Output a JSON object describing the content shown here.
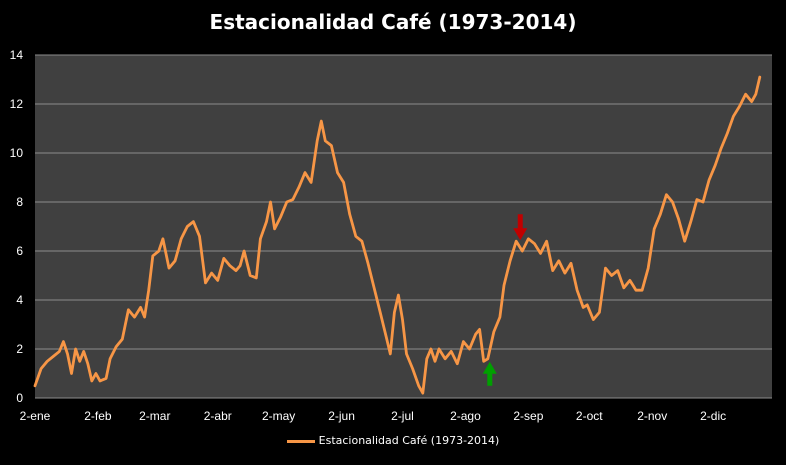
{
  "chart_data": {
    "type": "line",
    "title": "Estacionalidad Café  (1973-2014)",
    "xlabel": "",
    "ylabel": "",
    "ylim": [
      0,
      14
    ],
    "yticks": [
      0,
      2,
      4,
      6,
      8,
      10,
      12,
      14
    ],
    "xlim": [
      "2-ene",
      "31-dic"
    ],
    "x_tick_labels": [
      "2-ene",
      "2-feb",
      "2-mar",
      "2-abr",
      "2-may",
      "2-jun",
      "2-jul",
      "2-ago",
      "2-sep",
      "2-oct",
      "2-nov",
      "2-dic"
    ],
    "grid": true,
    "legend_position": "bottom",
    "background": "#404040",
    "series": [
      {
        "name": "Estacionalidad Café (1973-2014)",
        "color": "#F79646",
        "points": [
          [
            "2-ene",
            0.5
          ],
          [
            "5-ene",
            1.2
          ],
          [
            "8-ene",
            1.5
          ],
          [
            "11-ene",
            1.7
          ],
          [
            "14-ene",
            1.9
          ],
          [
            "16-ene",
            2.3
          ],
          [
            "18-ene",
            1.8
          ],
          [
            "20-ene",
            1.0
          ],
          [
            "22-ene",
            2.0
          ],
          [
            "24-ene",
            1.5
          ],
          [
            "26-ene",
            1.9
          ],
          [
            "28-ene",
            1.4
          ],
          [
            "30-ene",
            0.7
          ],
          [
            "1-feb",
            1.0
          ],
          [
            "3-feb",
            0.7
          ],
          [
            "6-feb",
            0.8
          ],
          [
            "8-feb",
            1.6
          ],
          [
            "11-feb",
            2.1
          ],
          [
            "14-feb",
            2.4
          ],
          [
            "17-feb",
            3.6
          ],
          [
            "20-feb",
            3.3
          ],
          [
            "23-feb",
            3.7
          ],
          [
            "25-feb",
            3.3
          ],
          [
            "27-feb",
            4.4
          ],
          [
            "1-mar",
            5.8
          ],
          [
            "4-mar",
            6.0
          ],
          [
            "6-mar",
            6.5
          ],
          [
            "9-mar",
            5.3
          ],
          [
            "12-mar",
            5.6
          ],
          [
            "15-mar",
            6.5
          ],
          [
            "18-mar",
            7.0
          ],
          [
            "21-mar",
            7.2
          ],
          [
            "24-mar",
            6.6
          ],
          [
            "27-mar",
            4.7
          ],
          [
            "30-mar",
            5.1
          ],
          [
            "2-abr",
            4.8
          ],
          [
            "5-abr",
            5.7
          ],
          [
            "8-abr",
            5.4
          ],
          [
            "11-abr",
            5.2
          ],
          [
            "13-abr",
            5.4
          ],
          [
            "15-abr",
            6.0
          ],
          [
            "18-abr",
            5.0
          ],
          [
            "21-abr",
            4.9
          ],
          [
            "23-abr",
            6.5
          ],
          [
            "26-abr",
            7.2
          ],
          [
            "28-abr",
            8.0
          ],
          [
            "30-abr",
            6.9
          ],
          [
            "3-may",
            7.4
          ],
          [
            "6-may",
            8.0
          ],
          [
            "9-may",
            8.1
          ],
          [
            "12-may",
            8.6
          ],
          [
            "15-may",
            9.2
          ],
          [
            "18-may",
            8.8
          ],
          [
            "21-may",
            10.5
          ],
          [
            "23-may",
            11.3
          ],
          [
            "25-may",
            10.5
          ],
          [
            "28-may",
            10.3
          ],
          [
            "31-may",
            9.2
          ],
          [
            "3-jun",
            8.8
          ],
          [
            "6-jun",
            7.5
          ],
          [
            "9-jun",
            6.6
          ],
          [
            "12-jun",
            6.4
          ],
          [
            "15-jun",
            5.5
          ],
          [
            "18-jun",
            4.5
          ],
          [
            "21-jun",
            3.5
          ],
          [
            "24-jun",
            2.5
          ],
          [
            "26-jun",
            1.8
          ],
          [
            "28-jun",
            3.5
          ],
          [
            "30-jun",
            4.2
          ],
          [
            "2-jul",
            3.2
          ],
          [
            "4-jul",
            1.8
          ],
          [
            "7-jul",
            1.2
          ],
          [
            "10-jul",
            0.5
          ],
          [
            "12-jul",
            0.2
          ],
          [
            "14-jul",
            1.6
          ],
          [
            "16-jul",
            2.0
          ],
          [
            "18-jul",
            1.5
          ],
          [
            "20-jul",
            2.0
          ],
          [
            "23-jul",
            1.6
          ],
          [
            "26-jul",
            1.9
          ],
          [
            "29-jul",
            1.4
          ],
          [
            "1-ago",
            2.3
          ],
          [
            "4-ago",
            2.0
          ],
          [
            "7-ago",
            2.6
          ],
          [
            "9-ago",
            2.8
          ],
          [
            "11-ago",
            1.5
          ],
          [
            "13-ago",
            1.6
          ],
          [
            "16-ago",
            2.7
          ],
          [
            "19-ago",
            3.3
          ],
          [
            "21-ago",
            4.6
          ],
          [
            "24-ago",
            5.6
          ],
          [
            "27-ago",
            6.4
          ],
          [
            "30-ago",
            6.0
          ],
          [
            "2-sep",
            6.5
          ],
          [
            "5-sep",
            6.3
          ],
          [
            "8-sep",
            5.9
          ],
          [
            "11-sep",
            6.4
          ],
          [
            "14-sep",
            5.2
          ],
          [
            "17-sep",
            5.6
          ],
          [
            "20-sep",
            5.1
          ],
          [
            "23-sep",
            5.5
          ],
          [
            "26-sep",
            4.4
          ],
          [
            "29-sep",
            3.7
          ],
          [
            "1-oct",
            3.8
          ],
          [
            "4-oct",
            3.2
          ],
          [
            "7-oct",
            3.5
          ],
          [
            "10-oct",
            5.3
          ],
          [
            "13-oct",
            5.0
          ],
          [
            "16-oct",
            5.2
          ],
          [
            "19-oct",
            4.5
          ],
          [
            "22-oct",
            4.8
          ],
          [
            "25-oct",
            4.4
          ],
          [
            "28-oct",
            4.4
          ],
          [
            "31-oct",
            5.3
          ],
          [
            "3-nov",
            6.9
          ],
          [
            "6-nov",
            7.5
          ],
          [
            "9-nov",
            8.3
          ],
          [
            "12-nov",
            8.0
          ],
          [
            "15-nov",
            7.3
          ],
          [
            "18-nov",
            6.4
          ],
          [
            "21-nov",
            7.2
          ],
          [
            "24-nov",
            8.1
          ],
          [
            "27-nov",
            8.0
          ],
          [
            "30-nov",
            8.9
          ],
          [
            "3-dic",
            9.5
          ],
          [
            "6-dic",
            10.2
          ],
          [
            "9-dic",
            10.8
          ],
          [
            "12-dic",
            11.5
          ],
          [
            "15-dic",
            11.9
          ],
          [
            "18-dic",
            12.4
          ],
          [
            "21-dic",
            12.1
          ],
          [
            "23-dic",
            12.4
          ],
          [
            "25-dic",
            13.1
          ]
        ]
      }
    ],
    "annotations": [
      {
        "type": "arrow-down",
        "color": "#C00000",
        "at": "29-ago",
        "y": 7.5
      },
      {
        "type": "arrow-up",
        "color": "#00A000",
        "at": "14-ago",
        "y": 0.5
      }
    ]
  }
}
